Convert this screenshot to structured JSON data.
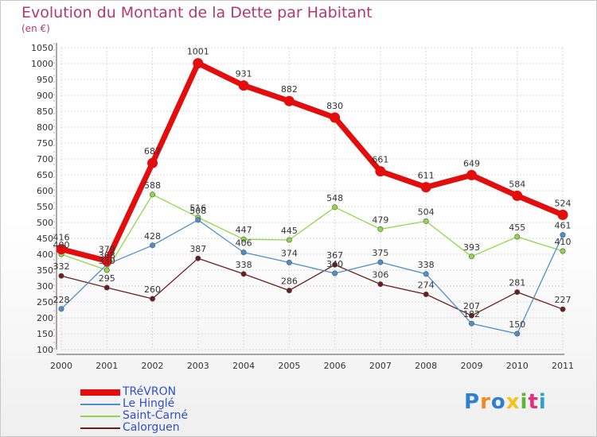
{
  "header": {
    "title": "Evolution du Montant de la Dette par Habitant",
    "subtitle": "(en €)"
  },
  "logo": {
    "text": "Proxiti"
  },
  "colors": {
    "TRéVRON": "#e30d0d",
    "Le Hinglé": "#4e8fc7",
    "Saint-Carné": "#8fd84a",
    "Calorguen": "#6b1d1d",
    "label": "#b23a6b",
    "legend_text": "#3050c8"
  },
  "chart_data": {
    "type": "line",
    "title": "Evolution du Montant de la Dette par Habitant",
    "subtitle": "(en €)",
    "xlabel": "",
    "ylabel": "",
    "x": [
      "2000",
      "2001",
      "2002",
      "2003",
      "2004",
      "2005",
      "2006",
      "2007",
      "2008",
      "2009",
      "2010",
      "2011"
    ],
    "ylim": [
      100,
      1050
    ],
    "yticks": [
      100,
      150,
      200,
      250,
      300,
      350,
      400,
      450,
      500,
      550,
      600,
      650,
      700,
      750,
      800,
      850,
      900,
      950,
      1000,
      1050
    ],
    "grid": true,
    "legend": "bottom-left",
    "series": [
      {
        "name": "TRéVRON",
        "values": [
          416,
          379,
          687,
          1001,
          931,
          882,
          830,
          661,
          611,
          649,
          584,
          524
        ]
      },
      {
        "name": "Le Hinglé",
        "values": [
          228,
          368,
          428,
          508,
          406,
          374,
          340,
          375,
          338,
          182,
          150,
          461
        ]
      },
      {
        "name": "Saint-Carné",
        "values": [
          400,
          350,
          588,
          516,
          447,
          445,
          548,
          479,
          504,
          393,
          455,
          410
        ]
      },
      {
        "name": "Calorguen",
        "values": [
          332,
          295,
          260,
          387,
          338,
          286,
          367,
          306,
          274,
          207,
          281,
          227
        ]
      }
    ]
  }
}
